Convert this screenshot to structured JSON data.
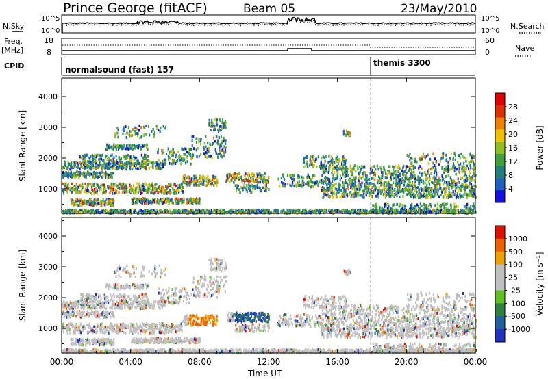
{
  "header": {
    "station": "Prince George (fitACF)",
    "beam": "Beam 05",
    "date": "23/May/2010"
  },
  "panels": {
    "nsky_label": "N.Sky",
    "nsky_top": "10^5",
    "nsky_bottom": "10^0",
    "nsearch_label": "N.Search",
    "freq_label": "Freq.",
    "freq_unit": "[MHz]",
    "freq_top": "18",
    "freq_bottom": "8",
    "nave_top": "60",
    "nave_bottom": "0",
    "nave_label": "Nave",
    "cpid_label": "CPID",
    "cpid_1": "normalsound (fast) 157",
    "cpid_2": "themis 3300"
  },
  "chart_data": [
    {
      "type": "heatmap",
      "title": "",
      "xlabel": "Time UT",
      "ylabel": "Slant Range [km]",
      "x_ticks": [
        "00:00",
        "04:00",
        "08:00",
        "12:00",
        "16:00",
        "20:00",
        "00:00"
      ],
      "y_ticks": [
        "1000",
        "2000",
        "3000",
        "4000"
      ],
      "ylim": [
        200,
        4600
      ],
      "xlim_hours": [
        0,
        24
      ],
      "colorbar": {
        "label": "Power [dB]",
        "ticks": [
          "4",
          "8",
          "12",
          "16",
          "20",
          "24",
          "28"
        ],
        "colors": [
          "#1010e0",
          "#2060c0",
          "#208080",
          "#40a040",
          "#90c020",
          "#f0c000",
          "#f08000",
          "#e03000",
          "#e00000"
        ]
      }
    },
    {
      "type": "heatmap",
      "title": "",
      "xlabel": "Time UT",
      "ylabel": "Slant Range [km]",
      "x_ticks": [
        "00:00",
        "04:00",
        "08:00",
        "12:00",
        "16:00",
        "20:00",
        "00:00"
      ],
      "y_ticks": [
        "1000",
        "2000",
        "3000",
        "4000"
      ],
      "ylim": [
        200,
        4600
      ],
      "xlim_hours": [
        0,
        24
      ],
      "colorbar": {
        "label": "Velocity [m s⁻¹]",
        "ticks": [
          "1000",
          "500",
          "100",
          "25",
          "-25",
          "-100",
          "-500",
          "-1000"
        ],
        "colors": [
          "#2030c0",
          "#2060a0",
          "#308040",
          "#60c020",
          "#c0c0c0",
          "#c0c0c0",
          "#f0a000",
          "#f06000",
          "#e01000"
        ]
      }
    }
  ]
}
